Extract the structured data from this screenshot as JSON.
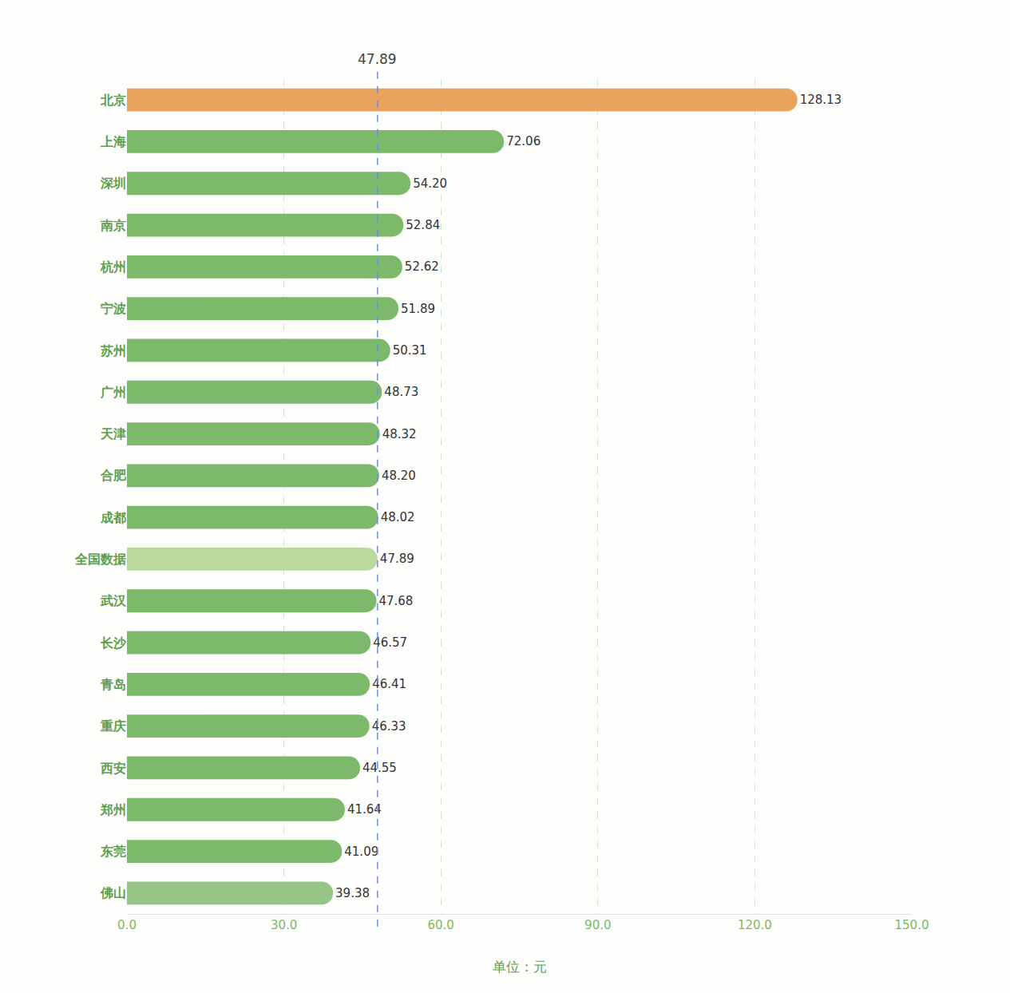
{
  "chart_data": {
    "type": "bar",
    "orientation": "horizontal",
    "x_label": "单位：元",
    "categories": [
      "北京",
      "上海",
      "深圳",
      "南京",
      "杭州",
      "宁波",
      "苏州",
      "广州",
      "天津",
      "合肥",
      "成都",
      "全国数据",
      "武汉",
      "长沙",
      "青岛",
      "重庆",
      "西安",
      "郑州",
      "东莞",
      "佛山"
    ],
    "values": [
      128.13,
      72.06,
      54.2,
      52.84,
      52.62,
      51.89,
      50.31,
      48.73,
      48.32,
      48.2,
      48.02,
      47.89,
      47.68,
      46.57,
      46.41,
      46.33,
      44.55,
      41.64,
      41.09,
      39.38
    ],
    "value_labels": [
      "128.13",
      "72.06",
      "54.20",
      "52.84",
      "52.62",
      "51.89",
      "50.31",
      "48.73",
      "48.32",
      "48.20",
      "48.02",
      "47.89",
      "47.68",
      "46.57",
      "46.41",
      "46.33",
      "44.55",
      "41.64",
      "41.09",
      "39.38"
    ],
    "colors": [
      "#e8a45c",
      "#7cb96a",
      "#7cb96a",
      "#7cb96a",
      "#7cb96a",
      "#7cb96a",
      "#7cb96a",
      "#7cb96a",
      "#7cb96a",
      "#7cb96a",
      "#7cb96a",
      "#bbd99e",
      "#7cb96a",
      "#7cb96a",
      "#7cb96a",
      "#7cb96a",
      "#7cb96a",
      "#7cb96a",
      "#7cb96a",
      "#97c585"
    ],
    "xlim": [
      0,
      150
    ],
    "xticks": [
      {
        "value": 0,
        "label": "0.0"
      },
      {
        "value": 30,
        "label": "30.0"
      },
      {
        "value": 60,
        "label": "60.0"
      },
      {
        "value": 90,
        "label": "90.0"
      },
      {
        "value": 120,
        "label": "120.0"
      },
      {
        "value": 150,
        "label": "150.0"
      }
    ],
    "annotations": [
      {
        "x": 47.89,
        "text": "47.89"
      }
    ],
    "grid": true,
    "data_labels": true
  }
}
